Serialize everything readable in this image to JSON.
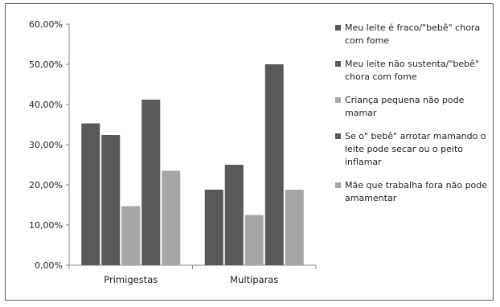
{
  "chart_data": {
    "type": "bar",
    "categories": [
      "Primigestas",
      "Multíparas"
    ],
    "series": [
      {
        "name": "Meu leite é fraco/\"bebê\" chora com fome",
        "color": "#595959",
        "values": [
          35.3,
          18.8
        ]
      },
      {
        "name": "Meu leite não sustenta/\"bebê\" chora com fome",
        "color": "#595959",
        "values": [
          32.4,
          25.0
        ]
      },
      {
        "name": "Criança pequena não pode mamar",
        "color": "#a6a6a6",
        "values": [
          14.7,
          12.5
        ]
      },
      {
        "name": "Se o\" bebê\" arrotar mamando o leite pode secar ou o peito inflamar",
        "color": "#595959",
        "values": [
          41.2,
          50.0
        ]
      },
      {
        "name": "Mãe que trabalha fora não pode amamentar",
        "color": "#a6a6a6",
        "values": [
          23.5,
          18.8
        ]
      }
    ],
    "yticks": [
      "0,00%",
      "10,00%",
      "20,00%",
      "30,00%",
      "40,00%",
      "50,00%",
      "60,00%"
    ],
    "ylim": [
      0,
      60
    ],
    "legend_position": "right",
    "grid": false
  }
}
